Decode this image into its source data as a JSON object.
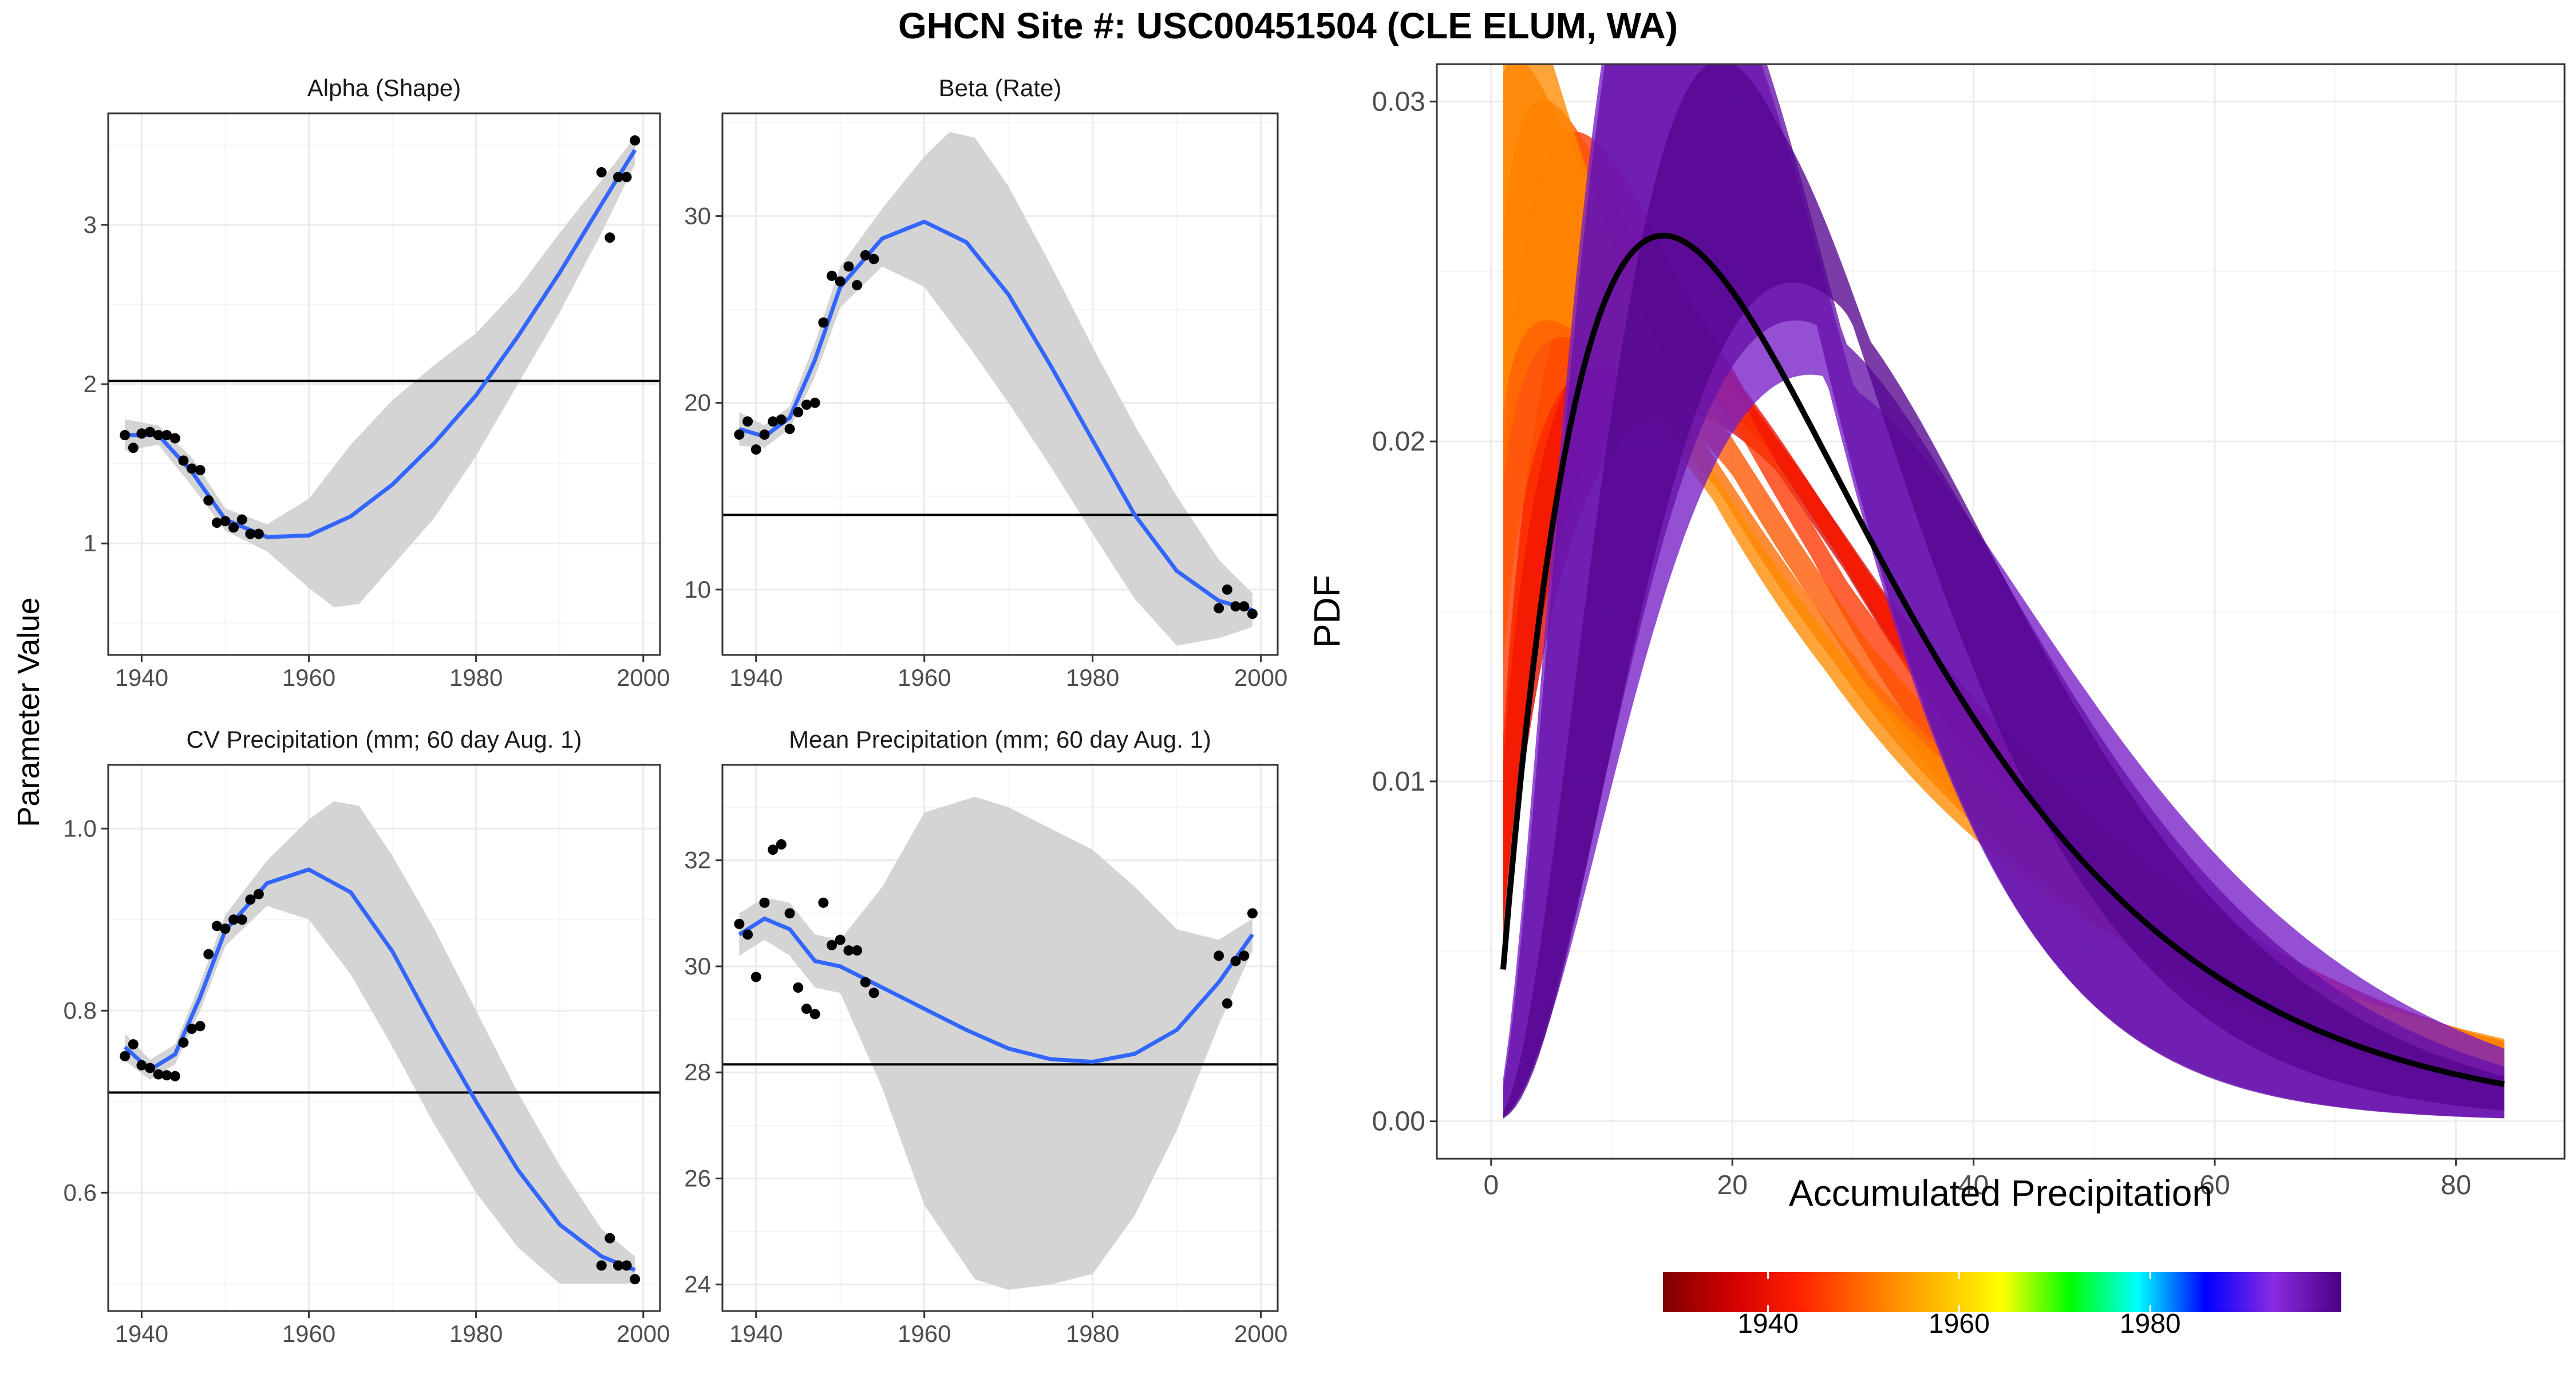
{
  "title": "GHCN Site #: USC00451504 (CLE ELUM, WA)",
  "left_ylabel": "Parameter Value",
  "chart_data": [
    {
      "type": "scatter",
      "title": "Alpha (Shape)",
      "xlim": [
        1936,
        2002
      ],
      "ylim": [
        0.3,
        3.7
      ],
      "xticks": [
        1940,
        1960,
        1980,
        2000
      ],
      "yticks": [
        1,
        2,
        3
      ],
      "hline": 2.02,
      "points": [
        [
          1938,
          1.68
        ],
        [
          1939,
          1.6
        ],
        [
          1940,
          1.69
        ],
        [
          1941,
          1.7
        ],
        [
          1942,
          1.68
        ],
        [
          1943,
          1.68
        ],
        [
          1944,
          1.66
        ],
        [
          1945,
          1.52
        ],
        [
          1946,
          1.47
        ],
        [
          1947,
          1.46
        ],
        [
          1948,
          1.27
        ],
        [
          1949,
          1.13
        ],
        [
          1950,
          1.14
        ],
        [
          1951,
          1.1
        ],
        [
          1952,
          1.15
        ],
        [
          1953,
          1.06
        ],
        [
          1954,
          1.06
        ],
        [
          1995,
          3.33
        ],
        [
          1996,
          2.92
        ],
        [
          1997,
          3.3
        ],
        [
          1998,
          3.3
        ],
        [
          1999,
          3.53
        ]
      ],
      "smooth": [
        [
          1938,
          1.68
        ],
        [
          1942,
          1.68
        ],
        [
          1946,
          1.45
        ],
        [
          1950,
          1.15
        ],
        [
          1955,
          1.04
        ],
        [
          1960,
          1.05
        ],
        [
          1965,
          1.17
        ],
        [
          1970,
          1.37
        ],
        [
          1975,
          1.63
        ],
        [
          1980,
          1.93
        ],
        [
          1985,
          2.3
        ],
        [
          1990,
          2.7
        ],
        [
          1995,
          3.13
        ],
        [
          1999,
          3.47
        ]
      ],
      "band_upper": [
        [
          1938,
          1.78
        ],
        [
          1942,
          1.74
        ],
        [
          1946,
          1.54
        ],
        [
          1950,
          1.22
        ],
        [
          1955,
          1.12
        ],
        [
          1960,
          1.28
        ],
        [
          1965,
          1.62
        ],
        [
          1970,
          1.9
        ],
        [
          1975,
          2.12
        ],
        [
          1980,
          2.32
        ],
        [
          1985,
          2.6
        ],
        [
          1990,
          2.95
        ],
        [
          1995,
          3.28
        ],
        [
          1999,
          3.55
        ]
      ],
      "band_lower": [
        [
          1938,
          1.58
        ],
        [
          1942,
          1.62
        ],
        [
          1946,
          1.36
        ],
        [
          1950,
          1.08
        ],
        [
          1955,
          0.95
        ],
        [
          1960,
          0.72
        ],
        [
          1963,
          0.6
        ],
        [
          1966,
          0.62
        ],
        [
          1970,
          0.86
        ],
        [
          1975,
          1.16
        ],
        [
          1980,
          1.55
        ],
        [
          1985,
          2.0
        ],
        [
          1990,
          2.45
        ],
        [
          1995,
          2.95
        ],
        [
          1999,
          3.38
        ]
      ]
    },
    {
      "type": "scatter",
      "title": "Beta (Rate)",
      "xlim": [
        1936,
        2002
      ],
      "ylim": [
        6.5,
        35.5
      ],
      "xticks": [
        1940,
        1960,
        1980,
        2000
      ],
      "yticks": [
        10,
        20,
        30
      ],
      "hline": 14.0,
      "points": [
        [
          1938,
          18.3
        ],
        [
          1939,
          19.0
        ],
        [
          1940,
          17.5
        ],
        [
          1941,
          18.3
        ],
        [
          1942,
          19.0
        ],
        [
          1943,
          19.1
        ],
        [
          1944,
          18.6
        ],
        [
          1945,
          19.5
        ],
        [
          1946,
          19.9
        ],
        [
          1947,
          20.0
        ],
        [
          1948,
          24.3
        ],
        [
          1949,
          26.8
        ],
        [
          1950,
          26.5
        ],
        [
          1951,
          27.3
        ],
        [
          1952,
          26.3
        ],
        [
          1953,
          27.9
        ],
        [
          1954,
          27.7
        ],
        [
          1995,
          9.0
        ],
        [
          1996,
          10.0
        ],
        [
          1997,
          9.1
        ],
        [
          1998,
          9.1
        ],
        [
          1999,
          8.7
        ]
      ],
      "smooth": [
        [
          1938,
          18.6
        ],
        [
          1941,
          18.2
        ],
        [
          1944,
          19.2
        ],
        [
          1947,
          22.3
        ],
        [
          1950,
          26.2
        ],
        [
          1955,
          28.8
        ],
        [
          1960,
          29.7
        ],
        [
          1965,
          28.6
        ],
        [
          1970,
          25.8
        ],
        [
          1975,
          22.0
        ],
        [
          1980,
          18.0
        ],
        [
          1985,
          14.0
        ],
        [
          1990,
          11.0
        ],
        [
          1995,
          9.4
        ],
        [
          1999,
          8.9
        ]
      ],
      "band_upper": [
        [
          1938,
          19.5
        ],
        [
          1941,
          18.8
        ],
        [
          1944,
          19.8
        ],
        [
          1947,
          23.2
        ],
        [
          1950,
          27.3
        ],
        [
          1955,
          30.4
        ],
        [
          1960,
          33.2
        ],
        [
          1963,
          34.5
        ],
        [
          1966,
          34.2
        ],
        [
          1970,
          31.6
        ],
        [
          1975,
          27.4
        ],
        [
          1980,
          23.0
        ],
        [
          1985,
          18.8
        ],
        [
          1990,
          15.0
        ],
        [
          1995,
          11.6
        ],
        [
          1999,
          9.8
        ]
      ],
      "band_lower": [
        [
          1938,
          17.7
        ],
        [
          1941,
          17.6
        ],
        [
          1944,
          18.6
        ],
        [
          1947,
          21.4
        ],
        [
          1950,
          25.1
        ],
        [
          1955,
          27.3
        ],
        [
          1960,
          26.2
        ],
        [
          1965,
          23.2
        ],
        [
          1970,
          20.0
        ],
        [
          1975,
          16.6
        ],
        [
          1980,
          13.0
        ],
        [
          1985,
          9.5
        ],
        [
          1990,
          7.0
        ],
        [
          1995,
          7.4
        ],
        [
          1999,
          8.0
        ]
      ]
    },
    {
      "type": "scatter",
      "title": "CV Precipitation (mm; 60 day Aug. 1)",
      "xlim": [
        1936,
        2002
      ],
      "ylim": [
        0.47,
        1.07
      ],
      "xticks": [
        1940,
        1960,
        1980,
        2000
      ],
      "yticks": [
        0.6,
        0.8,
        1.0
      ],
      "hline": 0.71,
      "points": [
        [
          1938,
          0.75
        ],
        [
          1939,
          0.763
        ],
        [
          1940,
          0.74
        ],
        [
          1941,
          0.737
        ],
        [
          1942,
          0.73
        ],
        [
          1943,
          0.729
        ],
        [
          1944,
          0.728
        ],
        [
          1945,
          0.765
        ],
        [
          1946,
          0.78
        ],
        [
          1947,
          0.783
        ],
        [
          1948,
          0.862
        ],
        [
          1949,
          0.893
        ],
        [
          1950,
          0.89
        ],
        [
          1951,
          0.9
        ],
        [
          1952,
          0.9
        ],
        [
          1953,
          0.922
        ],
        [
          1954,
          0.928
        ],
        [
          1995,
          0.52
        ],
        [
          1996,
          0.55
        ],
        [
          1997,
          0.52
        ],
        [
          1998,
          0.52
        ],
        [
          1999,
          0.505
        ]
      ],
      "smooth": [
        [
          1938,
          0.76
        ],
        [
          1941,
          0.735
        ],
        [
          1944,
          0.752
        ],
        [
          1947,
          0.815
        ],
        [
          1950,
          0.888
        ],
        [
          1955,
          0.94
        ],
        [
          1960,
          0.955
        ],
        [
          1965,
          0.93
        ],
        [
          1970,
          0.865
        ],
        [
          1975,
          0.78
        ],
        [
          1980,
          0.7
        ],
        [
          1985,
          0.625
        ],
        [
          1990,
          0.565
        ],
        [
          1995,
          0.53
        ],
        [
          1999,
          0.515
        ]
      ],
      "band_upper": [
        [
          1938,
          0.775
        ],
        [
          1941,
          0.746
        ],
        [
          1944,
          0.763
        ],
        [
          1947,
          0.83
        ],
        [
          1950,
          0.905
        ],
        [
          1955,
          0.965
        ],
        [
          1960,
          1.01
        ],
        [
          1963,
          1.03
        ],
        [
          1966,
          1.025
        ],
        [
          1970,
          0.97
        ],
        [
          1975,
          0.89
        ],
        [
          1980,
          0.8
        ],
        [
          1985,
          0.71
        ],
        [
          1990,
          0.63
        ],
        [
          1995,
          0.56
        ],
        [
          1999,
          0.53
        ]
      ],
      "band_lower": [
        [
          1938,
          0.745
        ],
        [
          1941,
          0.724
        ],
        [
          1944,
          0.741
        ],
        [
          1947,
          0.8
        ],
        [
          1950,
          0.871
        ],
        [
          1955,
          0.915
        ],
        [
          1960,
          0.9
        ],
        [
          1965,
          0.84
        ],
        [
          1970,
          0.76
        ],
        [
          1975,
          0.675
        ],
        [
          1980,
          0.6
        ],
        [
          1985,
          0.54
        ],
        [
          1990,
          0.5
        ],
        [
          1995,
          0.5
        ],
        [
          1999,
          0.5
        ]
      ]
    },
    {
      "type": "scatter",
      "title": "Mean Precipitation (mm; 60 day Aug. 1)",
      "xlim": [
        1936,
        2002
      ],
      "ylim": [
        23.5,
        33.8
      ],
      "xticks": [
        1940,
        1960,
        1980,
        2000
      ],
      "yticks": [
        24,
        26,
        28,
        30,
        32
      ],
      "hline": 28.15,
      "points": [
        [
          1938,
          30.8
        ],
        [
          1939,
          30.6
        ],
        [
          1940,
          29.8
        ],
        [
          1941,
          31.2
        ],
        [
          1942,
          32.2
        ],
        [
          1943,
          32.3
        ],
        [
          1944,
          31.0
        ],
        [
          1945,
          29.6
        ],
        [
          1946,
          29.2
        ],
        [
          1947,
          29.1
        ],
        [
          1948,
          31.2
        ],
        [
          1949,
          30.4
        ],
        [
          1950,
          30.5
        ],
        [
          1951,
          30.3
        ],
        [
          1952,
          30.3
        ],
        [
          1953,
          29.7
        ],
        [
          1954,
          29.5
        ],
        [
          1995,
          30.2
        ],
        [
          1996,
          29.3
        ],
        [
          1997,
          30.1
        ],
        [
          1998,
          30.2
        ],
        [
          1999,
          31.0
        ]
      ],
      "smooth": [
        [
          1938,
          30.6
        ],
        [
          1941,
          30.9
        ],
        [
          1944,
          30.7
        ],
        [
          1947,
          30.1
        ],
        [
          1950,
          30.0
        ],
        [
          1955,
          29.6
        ],
        [
          1960,
          29.2
        ],
        [
          1965,
          28.8
        ],
        [
          1970,
          28.45
        ],
        [
          1975,
          28.25
        ],
        [
          1980,
          28.2
        ],
        [
          1985,
          28.35
        ],
        [
          1990,
          28.8
        ],
        [
          1995,
          29.7
        ],
        [
          1999,
          30.6
        ]
      ],
      "band_upper": [
        [
          1938,
          31.0
        ],
        [
          1941,
          31.3
        ],
        [
          1944,
          31.2
        ],
        [
          1947,
          30.6
        ],
        [
          1950,
          30.5
        ],
        [
          1955,
          31.5
        ],
        [
          1960,
          32.9
        ],
        [
          1966,
          33.2
        ],
        [
          1970,
          33.0
        ],
        [
          1975,
          32.6
        ],
        [
          1980,
          32.2
        ],
        [
          1985,
          31.5
        ],
        [
          1990,
          30.7
        ],
        [
          1995,
          30.5
        ],
        [
          1999,
          30.9
        ]
      ],
      "band_lower": [
        [
          1938,
          30.2
        ],
        [
          1941,
          30.5
        ],
        [
          1944,
          30.2
        ],
        [
          1947,
          29.6
        ],
        [
          1950,
          29.5
        ],
        [
          1955,
          27.7
        ],
        [
          1960,
          25.5
        ],
        [
          1966,
          24.1
        ],
        [
          1970,
          23.9
        ],
        [
          1975,
          24.0
        ],
        [
          1980,
          24.2
        ],
        [
          1985,
          25.3
        ],
        [
          1990,
          26.9
        ],
        [
          1995,
          28.9
        ],
        [
          1999,
          30.3
        ]
      ]
    },
    {
      "type": "area",
      "xlabel": "Accumulated Precipitation",
      "ylabel": "PDF",
      "xlim": [
        -4.5,
        89
      ],
      "ylim": [
        -0.0011,
        0.0311
      ],
      "xticks": [
        0,
        20,
        40,
        60,
        80
      ],
      "yticks": [
        0.0,
        0.01,
        0.02,
        0.03
      ],
      "ytick_labels": [
        "0.00",
        "0.01",
        "0.02",
        "0.03"
      ],
      "xmax": 84,
      "bands": [
        {
          "year": 1938,
          "alpha": [
            1.58,
            1.78
          ],
          "beta": [
            17.7,
            19.5
          ]
        },
        {
          "year": 1940,
          "alpha": [
            1.6,
            1.76
          ],
          "beta": [
            17.4,
            18.9
          ]
        },
        {
          "year": 1942,
          "alpha": [
            1.62,
            1.74
          ],
          "beta": [
            17.6,
            18.8
          ]
        },
        {
          "year": 1945,
          "alpha": [
            1.38,
            1.54
          ],
          "beta": [
            18.3,
            20.2
          ]
        },
        {
          "year": 1948,
          "alpha": [
            1.2,
            1.38
          ],
          "beta": [
            21.5,
            24.0
          ]
        },
        {
          "year": 1950,
          "alpha": [
            1.08,
            1.22
          ],
          "beta": [
            25.1,
            27.3
          ]
        },
        {
          "year": 1953,
          "alpha": [
            1.0,
            1.16
          ],
          "beta": [
            26.5,
            29.0
          ]
        },
        {
          "year": 1995,
          "alpha": [
            2.95,
            3.28
          ],
          "beta": [
            7.4,
            11.6
          ]
        },
        {
          "year": 1997,
          "alpha": [
            3.05,
            3.38
          ],
          "beta": [
            7.2,
            10.6
          ]
        },
        {
          "year": 1999,
          "alpha": [
            3.38,
            3.55
          ],
          "beta": [
            8.0,
            9.8
          ]
        }
      ],
      "mean_curve": {
        "alpha": 2.02,
        "beta": 14.0,
        "color": "#000000"
      },
      "colorbar": {
        "range": [
          1929,
          2000
        ],
        "ticks": [
          1940,
          1960,
          1980
        ],
        "tick_labels": [
          "1940",
          "1960",
          "1980"
        ],
        "colors": [
          "#800000",
          "#d00000",
          "#ff2000",
          "#ff7000",
          "#ffb800",
          "#ffff00",
          "#00ff00",
          "#00ffff",
          "#0000ff",
          "#8a2be2",
          "#4b0082"
        ]
      }
    }
  ],
  "colors": {
    "points": "#000000",
    "smooth": "#3366ff",
    "band": "#d4d4d4",
    "hline": "#000000",
    "grid_major": "#ebebeb",
    "grid_minor": "#f5f5f5",
    "frame": "#333333"
  }
}
